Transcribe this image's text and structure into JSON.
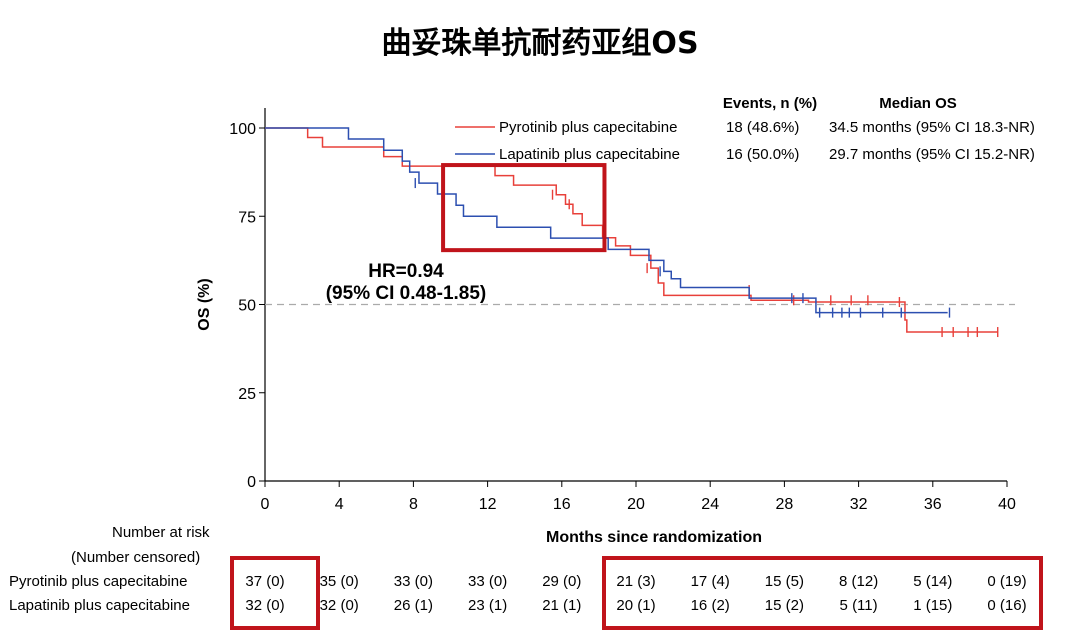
{
  "title": "曲妥珠单抗耐药亚组OS",
  "chart_data": {
    "type": "line",
    "subtype": "kaplan-meier",
    "xlabel": "Months since randomization",
    "ylabel": "OS (%)",
    "xlim": [
      0,
      40
    ],
    "ylim": [
      0,
      100
    ],
    "xticks": [
      0,
      4,
      8,
      12,
      16,
      20,
      24,
      28,
      32,
      36,
      40
    ],
    "yticks": [
      0,
      25,
      50,
      75,
      100
    ],
    "reference_line": 50,
    "legend_header": {
      "events": "Events, n (%)",
      "median": "Median OS"
    },
    "series": [
      {
        "name": "Pyrotinib plus capecitabine",
        "color": "#e8403a",
        "events": "18 (48.6%)",
        "median": "34.5 months (95% CI 18.3-NR)",
        "steps": [
          [
            0,
            100
          ],
          [
            2.3,
            97.3
          ],
          [
            3.1,
            94.6
          ],
          [
            6.4,
            91.9
          ],
          [
            7.4,
            89.2
          ],
          [
            12.4,
            86.5
          ],
          [
            13.4,
            83.8
          ],
          [
            15.7,
            81.1
          ],
          [
            16.2,
            78.4
          ],
          [
            16.6,
            75.7
          ],
          [
            17.1,
            72.4
          ],
          [
            18.2,
            68.9
          ],
          [
            18.9,
            66.6
          ],
          [
            19.7,
            63.9
          ],
          [
            20.8,
            60.3
          ],
          [
            21.2,
            56.1
          ],
          [
            21.5,
            52.6
          ],
          [
            26.2,
            51.2
          ],
          [
            29.3,
            50.7
          ],
          [
            34.5,
            45.6
          ],
          [
            34.6,
            42.2
          ],
          [
            39.5,
            42.2
          ]
        ],
        "censor": [
          [
            15.5,
            81.1
          ],
          [
            16.4,
            78.4
          ],
          [
            18.3,
            66.6
          ],
          [
            20.6,
            60.3
          ],
          [
            26.1,
            54.1
          ],
          [
            28.5,
            51.2
          ],
          [
            30.5,
            51.2
          ],
          [
            31.6,
            51.2
          ],
          [
            32.5,
            51.2
          ],
          [
            34.2,
            50.7
          ],
          [
            36.5,
            42.2
          ],
          [
            37.1,
            42.2
          ],
          [
            37.9,
            42.2
          ],
          [
            38.4,
            42.2
          ],
          [
            39.5,
            42.2
          ]
        ]
      },
      {
        "name": "Lapatinib plus capecitabine",
        "color": "#2c4fb0",
        "events": "16 (50.0%)",
        "median": "29.7 months (95% CI 15.2-NR)",
        "steps": [
          [
            0,
            100
          ],
          [
            4.5,
            96.9
          ],
          [
            6.4,
            93.7
          ],
          [
            7.4,
            90.6
          ],
          [
            7.8,
            87.5
          ],
          [
            8.3,
            84.4
          ],
          [
            9.3,
            81.3
          ],
          [
            10.3,
            78.1
          ],
          [
            10.7,
            75.0
          ],
          [
            12.5,
            71.9
          ],
          [
            15.4,
            68.8
          ],
          [
            18.5,
            65.6
          ],
          [
            20.7,
            62.5
          ],
          [
            21.5,
            59.4
          ],
          [
            21.9,
            57.3
          ],
          [
            22.4,
            54.8
          ],
          [
            26.1,
            51.8
          ],
          [
            29.7,
            47.7
          ],
          [
            36.8,
            47.7
          ]
        ],
        "censor": [
          [
            8.1,
            84.4
          ],
          [
            21.3,
            59.4
          ],
          [
            28.4,
            51.8
          ],
          [
            29.0,
            51.8
          ],
          [
            29.9,
            47.7
          ],
          [
            30.6,
            47.7
          ],
          [
            31.1,
            47.7
          ],
          [
            31.5,
            47.7
          ],
          [
            32.1,
            47.7
          ],
          [
            33.3,
            47.7
          ],
          [
            34.3,
            47.7
          ],
          [
            36.9,
            47.7
          ]
        ]
      }
    ],
    "annotation": {
      "line1": "HR=0.94",
      "line2": "(95% CI 0.48-1.85)"
    },
    "highlight_box_x_range": [
      9.6,
      18.3
    ],
    "highlight_box_y_range": [
      65.4,
      89.5
    ]
  },
  "risk_table": {
    "header1": "Number at risk",
    "header2": "(Number censored)",
    "times": [
      0,
      4,
      8,
      12,
      16,
      20,
      24,
      28,
      32,
      36,
      40
    ],
    "rows": [
      {
        "label": "Pyrotinib plus capecitabine",
        "values": [
          "37 (0)",
          "35 (0)",
          "33 (0)",
          "33 (0)",
          "29 (0)",
          "21 (3)",
          "17 (4)",
          "15 (5)",
          "8 (12)",
          "5 (14)",
          "0 (19)"
        ]
      },
      {
        "label": "Lapatinib plus capecitabine",
        "values": [
          "32 (0)",
          "32 (0)",
          "26 (1)",
          "23 (1)",
          "21 (1)",
          "20 (1)",
          "16 (2)",
          "15 (2)",
          "5 (11)",
          "1 (15)",
          "0 (16)"
        ]
      }
    ],
    "highlight_color": "#c0141b"
  }
}
